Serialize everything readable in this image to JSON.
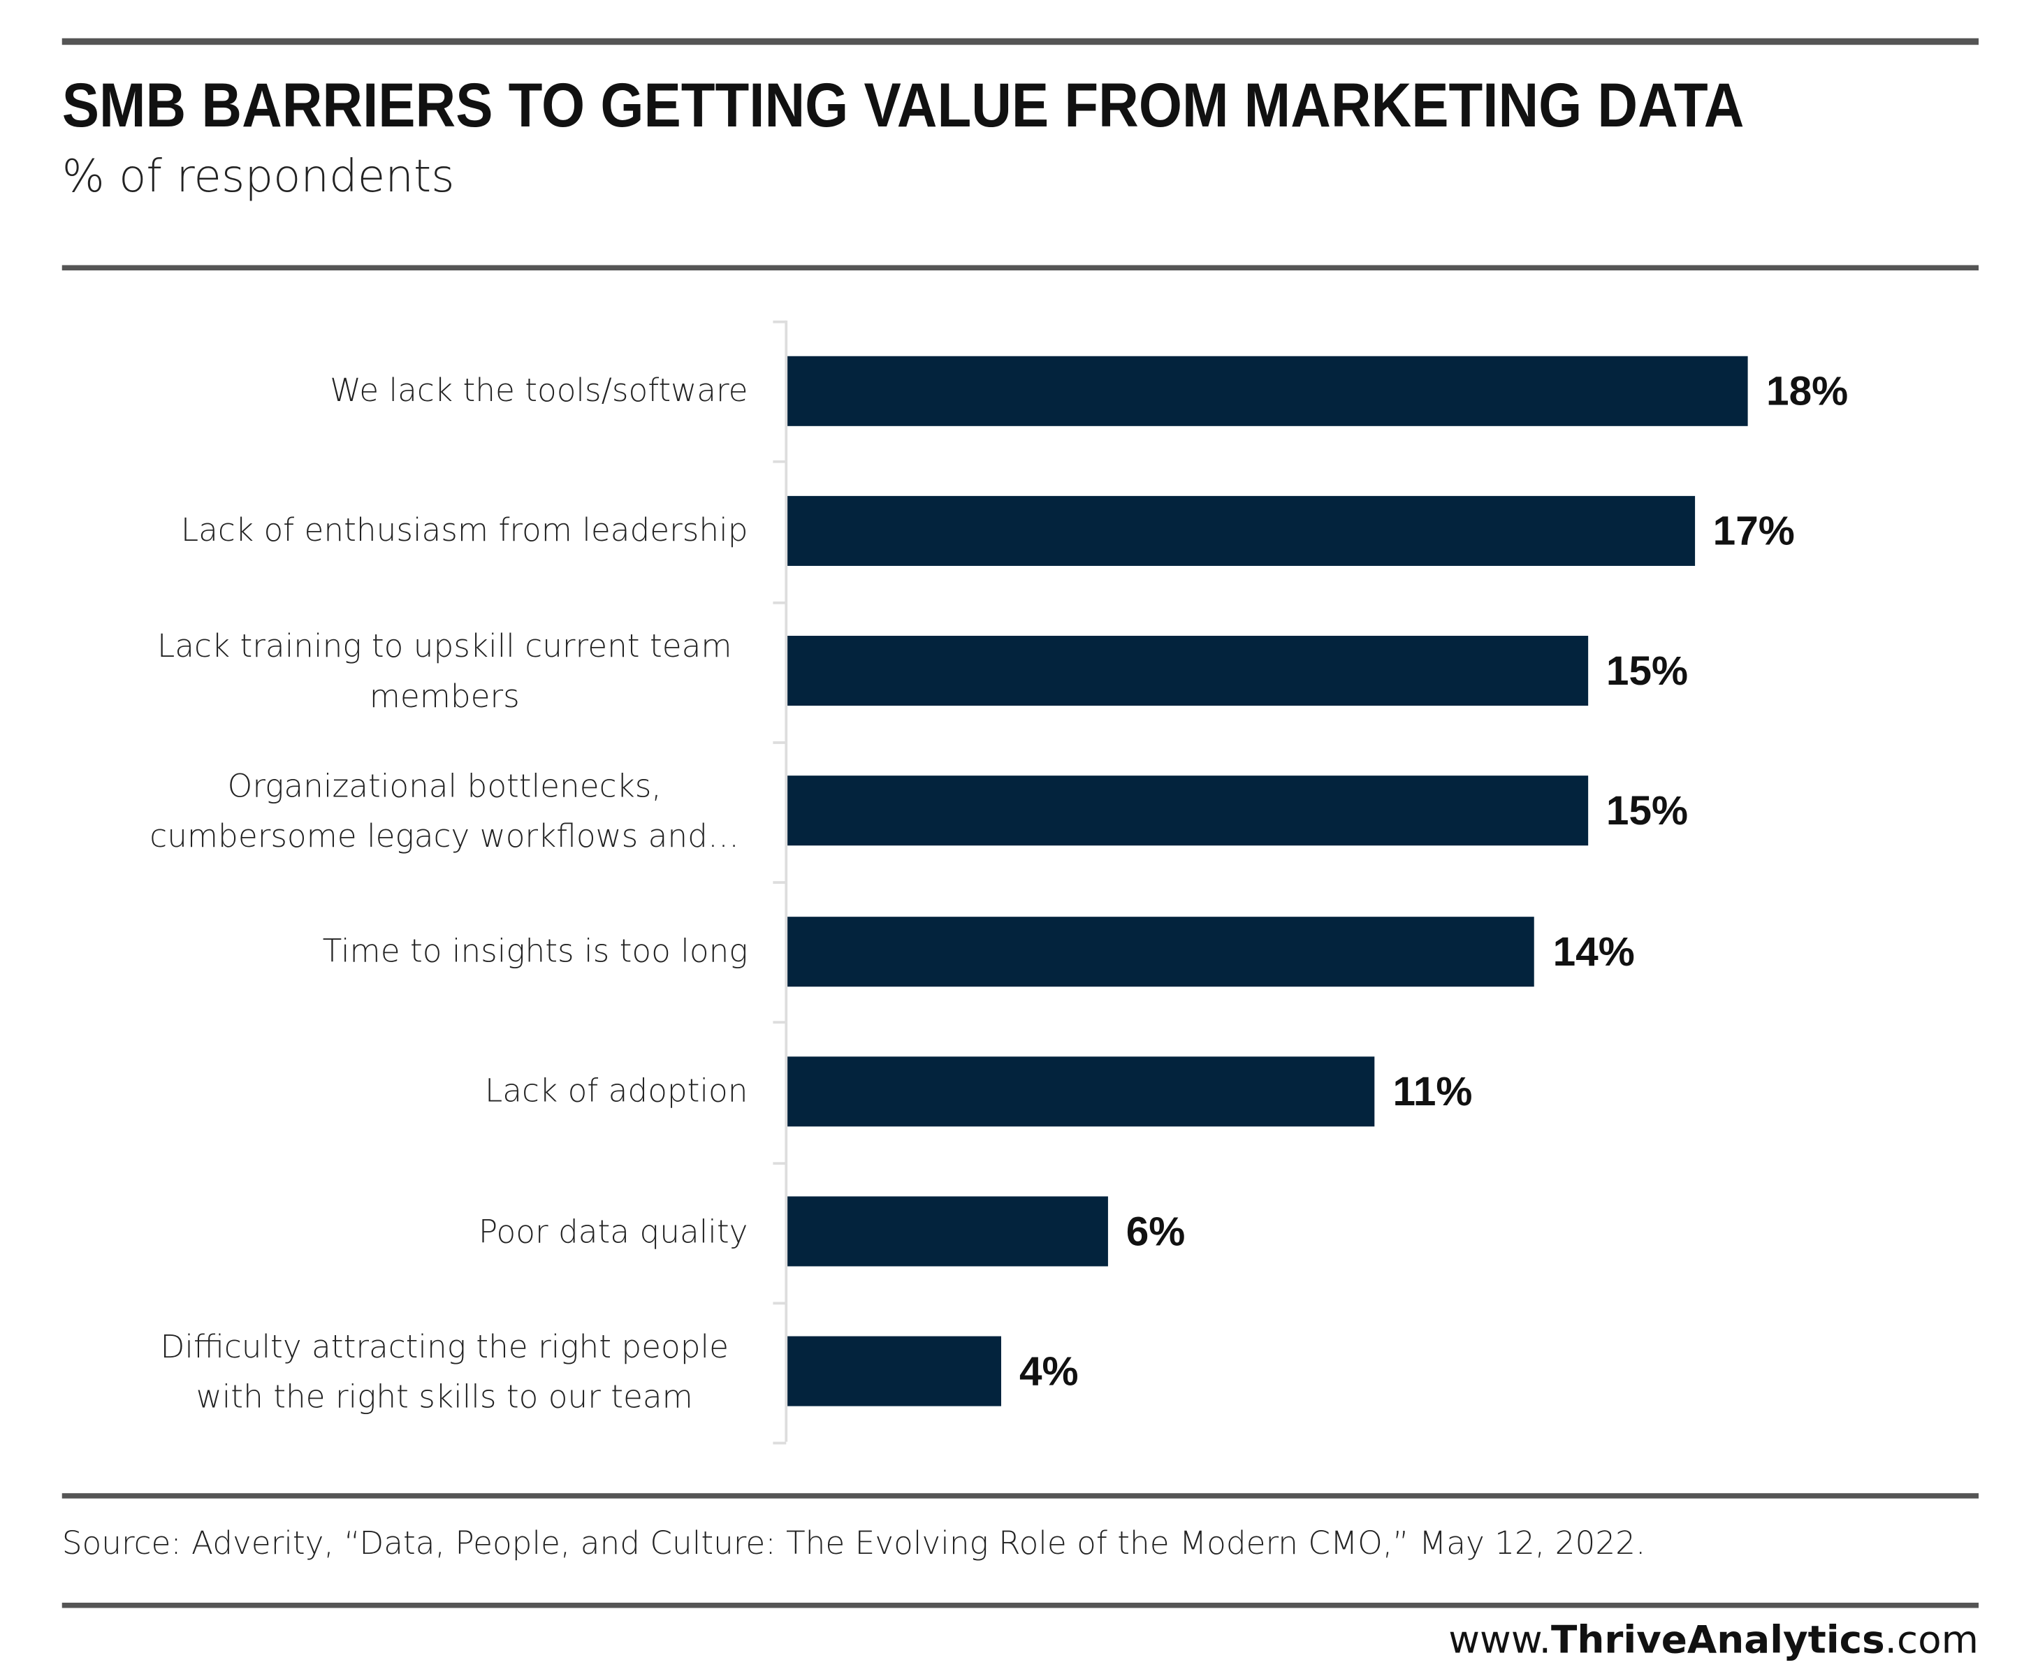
{
  "chart_data": {
    "type": "barh",
    "title": "SMB BARRIERS TO GETTING VALUE FROM MARKETING DATA",
    "subtitle": "% of respondents",
    "categories": [
      "We lack the tools/software",
      "Lack of enthusiasm from leadership",
      "Lack training to upskill current team members",
      "Organizational bottlenecks, cumbersome legacy workflows and…",
      "Time to insights is too long",
      "Lack of adoption",
      "Poor data quality",
      "Difficulty attracting the right people with the right skills to our team"
    ],
    "values": [
      18,
      17,
      15,
      15,
      14,
      11,
      6,
      4
    ],
    "value_labels": [
      "18%",
      "17%",
      "15%",
      "15%",
      "14%",
      "11%",
      "6%",
      "4%"
    ],
    "color": "#03233d",
    "source": "Source:  Adverity, “Data, People, and Culture: The Evolving Role of the Modern CMO,” May 12, 2022.",
    "website": {
      "prefix": "www.",
      "brand": "ThriveAnalytics",
      "suffix": ".com"
    }
  }
}
